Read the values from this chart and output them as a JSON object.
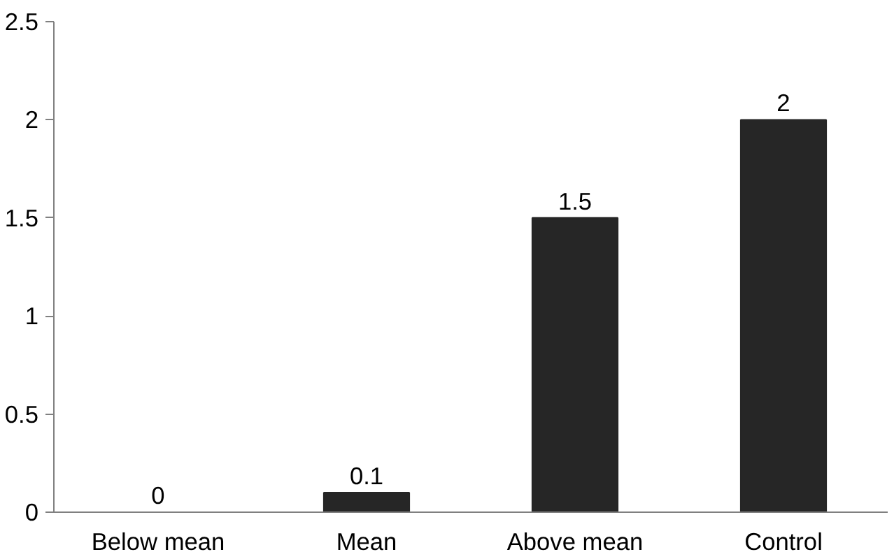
{
  "chart_data": {
    "type": "bar",
    "categories": [
      "Below mean",
      "Mean",
      "Above mean",
      "Control"
    ],
    "values": [
      0,
      0.1,
      1.5,
      2
    ],
    "color": "#262626",
    "ylim": [
      0,
      2.5
    ],
    "yticks": [
      0,
      0.5,
      1,
      1.5,
      2,
      2.5
    ],
    "data_labels": true,
    "grid": false
  }
}
